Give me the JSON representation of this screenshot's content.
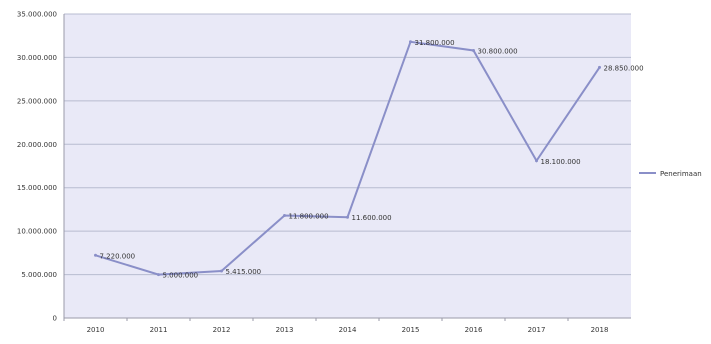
{
  "chart_data": {
    "type": "line",
    "x": [
      "2010",
      "2011",
      "2012",
      "2013",
      "2014",
      "2015",
      "2016",
      "2017",
      "2018"
    ],
    "series": [
      {
        "name": "Penerimaan",
        "values": [
          7220000,
          5000000,
          5415000,
          11800000,
          11600000,
          31800000,
          30800000,
          18100000,
          28850000
        ],
        "labels": [
          "7.220.000",
          "5.000.000",
          "5.415.000",
          "11.800.000",
          "11.600.000",
          "31.800.000",
          "30.800.000",
          "18.100.000",
          "28.850.000"
        ]
      }
    ],
    "yticks": [
      "0",
      "5.000.000",
      "10.000.000",
      "15.000.000",
      "20.000.000",
      "25.000.000",
      "30.000.000",
      "35.000.000"
    ],
    "ylim": [
      0,
      35000000
    ],
    "grid": true,
    "legend": "right",
    "colors": {
      "line": "#8a8fc8",
      "plot_bg": "#e9e9f7",
      "grid": "#b8bcd0"
    }
  }
}
